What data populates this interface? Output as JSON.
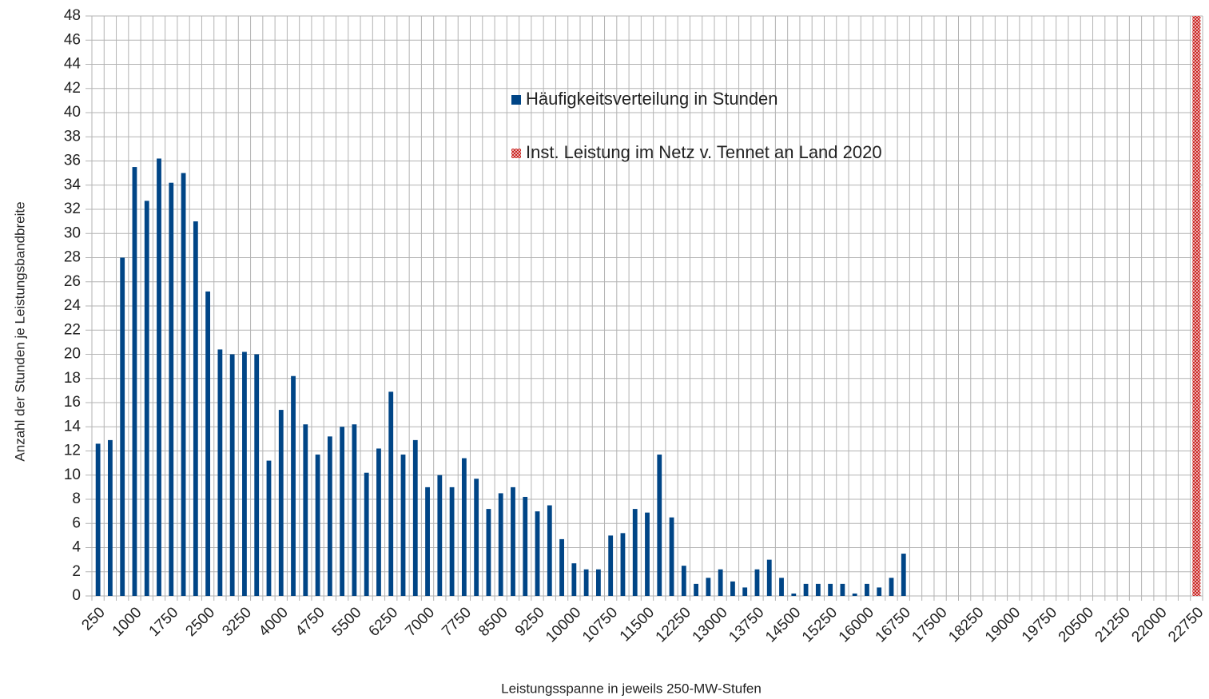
{
  "chart_data": {
    "type": "bar",
    "x_label": "Leistungsspanne in jeweils 250-MW-Stufen",
    "y_label": "Anzahl der Stunden je Leistungsbandbreite",
    "categories": [
      "250",
      null,
      null,
      "1000",
      null,
      null,
      "1750",
      null,
      null,
      "2500",
      null,
      null,
      "3250",
      null,
      null,
      "4000",
      null,
      null,
      "4750",
      null,
      null,
      "5500",
      null,
      null,
      "6250",
      null,
      null,
      "7000",
      null,
      null,
      "7750",
      null,
      null,
      "8500",
      null,
      null,
      "9250",
      null,
      null,
      "10000",
      null,
      null,
      "10750",
      null,
      null,
      "11500",
      null,
      null,
      "12250",
      null,
      null,
      "13000",
      null,
      null,
      "13750",
      null,
      null,
      "14500",
      null,
      null,
      "15250",
      null,
      null,
      "16000",
      null,
      null,
      "16750",
      null,
      null,
      "17500",
      null,
      null,
      "18250",
      null,
      null,
      "19000",
      null,
      null,
      "19750",
      null,
      null,
      "20500",
      null,
      null,
      "21250",
      null,
      null,
      "22000",
      null,
      null,
      "22750"
    ],
    "series": [
      {
        "name": "Häufigkeitsverteilung in Stunden",
        "color": "#004586",
        "values": [
          12.6,
          12.9,
          28.0,
          35.5,
          32.7,
          36.2,
          34.2,
          35.0,
          31.0,
          25.2,
          20.4,
          20.0,
          20.2,
          20.0,
          11.2,
          15.4,
          18.2,
          14.2,
          11.7,
          13.2,
          14.0,
          14.2,
          10.2,
          12.2,
          16.9,
          11.7,
          12.9,
          9.0,
          10.0,
          9.0,
          11.4,
          9.7,
          7.2,
          8.5,
          9.0,
          8.2,
          7.0,
          7.5,
          4.7,
          2.7,
          2.2,
          2.2,
          5.0,
          5.2,
          7.2,
          6.9,
          11.7,
          6.5,
          2.5,
          1.0,
          1.5,
          2.2,
          1.2,
          0.7,
          2.2,
          3.0,
          1.5,
          0.2,
          1.0,
          1.0,
          1.0,
          1.0,
          0.2,
          1.0,
          0.7,
          1.5,
          3.5,
          null,
          null,
          null,
          null,
          null,
          null,
          null,
          null,
          null,
          null,
          null,
          null,
          null,
          null,
          null,
          null,
          null,
          null,
          null,
          null,
          null,
          null,
          null,
          null
        ]
      },
      {
        "name": "Inst. Leistung im Netz v. Tennet an Land 2020",
        "color": "#c9211e",
        "hatch": true,
        "values": [
          null,
          null,
          null,
          null,
          null,
          null,
          null,
          null,
          null,
          null,
          null,
          null,
          null,
          null,
          null,
          null,
          null,
          null,
          null,
          null,
          null,
          null,
          null,
          null,
          null,
          null,
          null,
          null,
          null,
          null,
          null,
          null,
          null,
          null,
          null,
          null,
          null,
          null,
          null,
          null,
          null,
          null,
          null,
          null,
          null,
          null,
          null,
          null,
          null,
          null,
          null,
          null,
          null,
          null,
          null,
          null,
          null,
          null,
          null,
          null,
          null,
          null,
          null,
          null,
          null,
          null,
          null,
          null,
          null,
          null,
          null,
          null,
          null,
          null,
          null,
          null,
          null,
          null,
          null,
          null,
          null,
          null,
          null,
          null,
          null,
          null,
          null,
          null,
          null,
          null,
          48
        ]
      }
    ],
    "ylim": [
      0,
      48
    ],
    "yticks": [
      0,
      2,
      4,
      6,
      8,
      10,
      12,
      14,
      16,
      18,
      20,
      22,
      24,
      26,
      28,
      30,
      32,
      34,
      36,
      38,
      40,
      42,
      44,
      46,
      48
    ],
    "grid": true
  }
}
